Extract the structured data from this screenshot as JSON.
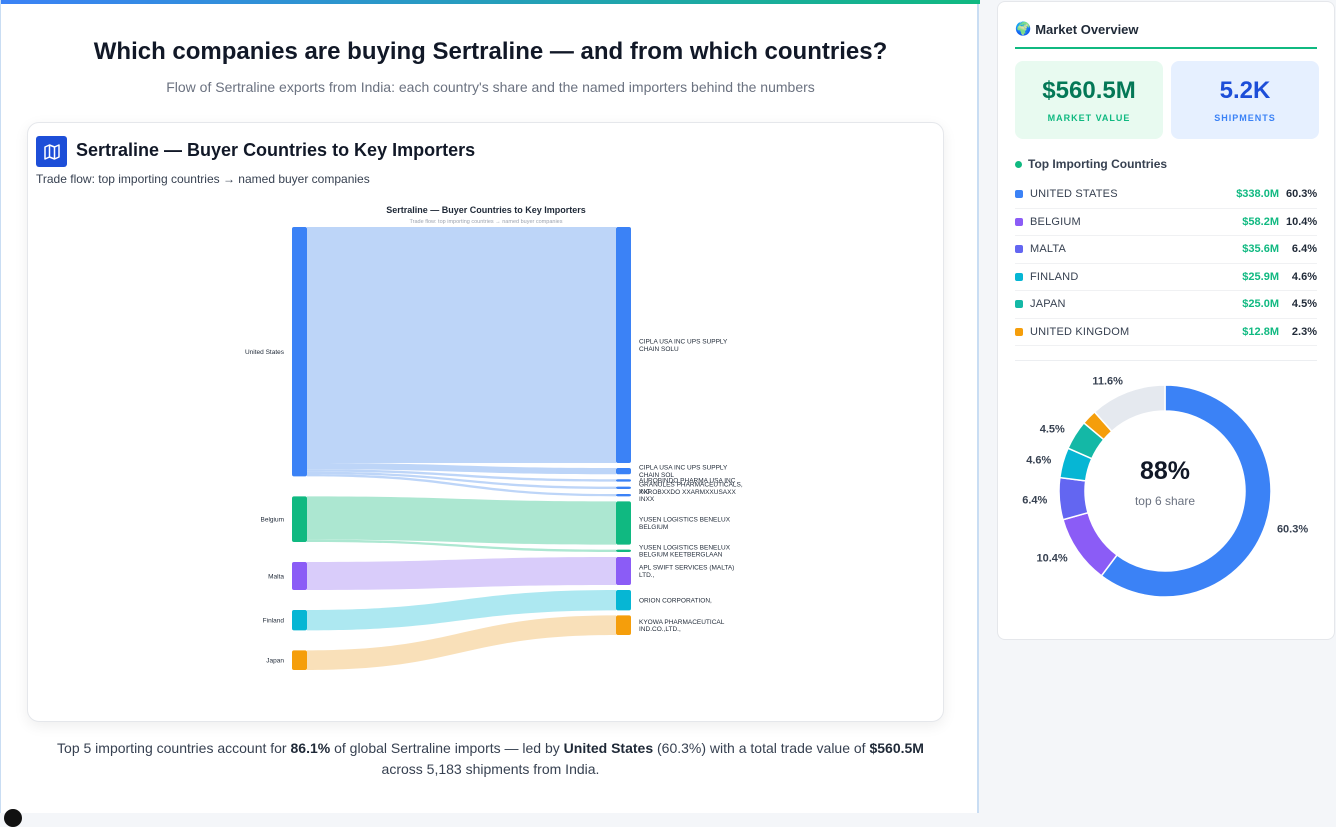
{
  "header": {
    "title": "Which companies are buying Sertraline — and from which countries?",
    "subtitle": "Flow of Sertraline exports from India: each country's share and the named importers behind the numbers"
  },
  "card": {
    "icon": "map-icon",
    "title": "Sertraline — Buyer Countries to Key Importers",
    "subtitle": "Trade flow: top importing countries → named buyer companies"
  },
  "chart_data": [
    {
      "type": "sankey",
      "title": "Sertraline — Buyer Countries to Key Importers",
      "subtitle": "Trade flow: top importing countries → named buyer companies",
      "sources": [
        {
          "name": "United States",
          "color": "#3b82f6",
          "link_color": "#b6d0f7"
        },
        {
          "name": "Belgium",
          "color": "#10b981",
          "link_color": "#a3e4cc"
        },
        {
          "name": "Malta",
          "color": "#8b5cf6",
          "link_color": "#d5c7fa"
        },
        {
          "name": "Finland",
          "color": "#06b6d4",
          "link_color": "#a4e5f0"
        },
        {
          "name": "Japan",
          "color": "#f59e0b",
          "link_color": "#f8ddb1"
        }
      ],
      "targets": [
        {
          "name": "CIPLA USA INC UPS SUPPLY CHAIN SOLU",
          "lines": [
            "CIPLA USA INC UPS SUPPLY",
            "CHAIN SOLU"
          ]
        },
        {
          "name": "CIPLA USA INC UPS SUPPLY CHAIN SOL",
          "lines": [
            "CIPLA USA INC UPS SUPPLY",
            "CHAIN SOL"
          ]
        },
        {
          "name": "AUROBINDO PHARMA USA INC",
          "lines": [
            "AUROBINDO PHARMA USA INC"
          ]
        },
        {
          "name": "GRANULES PHARMACEUTICALS, INC",
          "lines": [
            "GRANULES PHARMACEUTICALS,",
            "INC"
          ]
        },
        {
          "name": "XXROBXXDO XXARMXXUSAXX INXX",
          "lines": [
            "XXROBXXDO XXARMXXUSAXX",
            "INXX"
          ]
        },
        {
          "name": "YUSEN LOGISTICS BENELUX BELGIUM",
          "lines": [
            "YUSEN LOGISTICS BENELUX",
            "BELGIUM"
          ]
        },
        {
          "name": "YUSEN LOGISTICS BENELUX BELGIUM KEETBERGLAAN",
          "lines": [
            "YUSEN LOGISTICS BENELUX",
            "BELGIUM KEETBERGLAAN"
          ]
        },
        {
          "name": "APL SWIFT SERVICES (MALTA) LTD.,",
          "lines": [
            "APL SWIFT SERVICES (MALTA)",
            "LTD.,"
          ]
        },
        {
          "name": "ORION CORPORATION,",
          "lines": [
            "ORION CORPORATION,"
          ]
        },
        {
          "name": "KYOWA PHARMACEUTICAL IND.CO.,LTD.,",
          "lines": [
            "KYOWA PHARMACEUTICAL",
            "IND.CO.,LTD.,"
          ]
        }
      ],
      "links": [
        {
          "source": 0,
          "target": 0,
          "value": 300.0
        },
        {
          "source": 0,
          "target": 1,
          "value": 8.0
        },
        {
          "source": 0,
          "target": 2,
          "value": 3.0
        },
        {
          "source": 0,
          "target": 3,
          "value": 3.0
        },
        {
          "source": 0,
          "target": 4,
          "value": 3.0
        },
        {
          "source": 1,
          "target": 5,
          "value": 55.0
        },
        {
          "source": 1,
          "target": 6,
          "value": 3.0
        },
        {
          "source": 2,
          "target": 7,
          "value": 35.6
        },
        {
          "source": 3,
          "target": 8,
          "value": 25.9
        },
        {
          "source": 4,
          "target": 9,
          "value": 25.0
        }
      ]
    },
    {
      "type": "pie",
      "variant": "donut",
      "center_value": "88%",
      "center_label": "top 6 share",
      "slices": [
        {
          "name": "UNITED STATES",
          "value": 60.3,
          "label": "60.3%",
          "color": "#3b82f6"
        },
        {
          "name": "BELGIUM",
          "value": 10.4,
          "label": "10.4%",
          "color": "#8b5cf6"
        },
        {
          "name": "MALTA",
          "value": 6.4,
          "label": "6.4%",
          "color": "#6366f1"
        },
        {
          "name": "FINLAND",
          "value": 4.6,
          "label": "4.6%",
          "color": "#06b6d4"
        },
        {
          "name": "JAPAN",
          "value": 4.5,
          "label": "4.5%",
          "color": "#14b8a6"
        },
        {
          "name": "UNITED KINGDOM",
          "value": 2.3,
          "label": "",
          "color": "#f59e0b"
        },
        {
          "name": "Other",
          "value": 11.6,
          "label": "11.6%",
          "color": "#e5e9ef"
        }
      ]
    }
  ],
  "footer": {
    "p1": "Top 5 importing countries account for ",
    "b1": "86.1%",
    "p2": " of global Sertraline imports — led by ",
    "b2": "United States",
    "p3": " (60.3%) with a total trade value of ",
    "b3": "$560.5M",
    "p4": " across 5,183 shipments from India."
  },
  "sidebar": {
    "icon": "globe-icon",
    "icon_glyph": "🌍",
    "title": "Market Overview",
    "kpis": [
      {
        "value": "$560.5M",
        "label": "MARKET VALUE"
      },
      {
        "value": "5.2K",
        "label": "SHIPMENTS"
      }
    ],
    "section_title": "Top Importing Countries",
    "countries": [
      {
        "name": "UNITED STATES",
        "value": "$338.0M",
        "pct": "60.3%",
        "color": "#3b82f6"
      },
      {
        "name": "BELGIUM",
        "value": "$58.2M",
        "pct": "10.4%",
        "color": "#8b5cf6"
      },
      {
        "name": "MALTA",
        "value": "$35.6M",
        "pct": "6.4%",
        "color": "#6366f1"
      },
      {
        "name": "FINLAND",
        "value": "$25.9M",
        "pct": "4.6%",
        "color": "#06b6d4"
      },
      {
        "name": "JAPAN",
        "value": "$25.0M",
        "pct": "4.5%",
        "color": "#14b8a6"
      },
      {
        "name": "UNITED KINGDOM",
        "value": "$12.8M",
        "pct": "2.3%",
        "color": "#f59e0b"
      }
    ]
  }
}
